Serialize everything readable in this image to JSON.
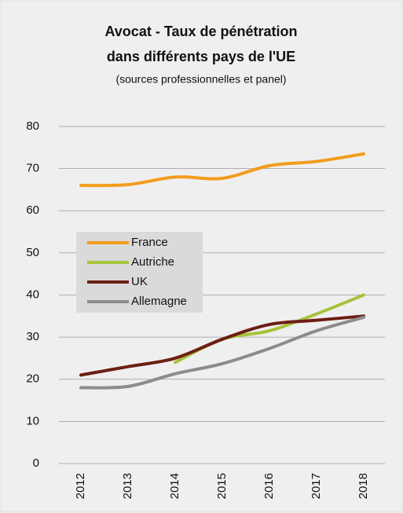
{
  "chart_data": {
    "type": "line",
    "title": [
      "Avocat - Taux de pénétration",
      "dans différents pays de l'UE"
    ],
    "subtitle": "(sources professionnelles et panel)",
    "categories": [
      "2012",
      "2013",
      "2014",
      "2015",
      "2016",
      "2017",
      "2018"
    ],
    "series": [
      {
        "name": "France",
        "color": "#f39c1e",
        "values": [
          66,
          66.2,
          68,
          67.7,
          70.7,
          71.7,
          73.5
        ]
      },
      {
        "name": "Autriche",
        "color": "#a6c33a",
        "values": [
          null,
          null,
          24,
          29.5,
          31.5,
          35.5,
          40
        ]
      },
      {
        "name": "UK",
        "color": "#6b1f12",
        "values": [
          21,
          23,
          25,
          29.5,
          33,
          34,
          35
        ]
      },
      {
        "name": "Allemagne",
        "color": "#8c8c8c",
        "values": [
          18,
          18.3,
          21.3,
          23.7,
          27.3,
          31.5,
          34.7
        ]
      }
    ],
    "ylim": [
      0,
      80
    ],
    "yticks": [
      0,
      10,
      20,
      30,
      40,
      50,
      60,
      70,
      80
    ],
    "grid": true,
    "legend": "center-left"
  }
}
